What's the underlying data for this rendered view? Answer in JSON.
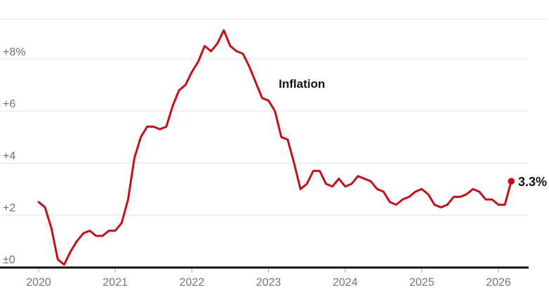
{
  "chart_data": {
    "type": "line",
    "title": "",
    "series_label": "Inflation",
    "unit": "%",
    "frequency": "monthly",
    "start_month": "2020-01",
    "values": [
      2.5,
      2.3,
      1.5,
      0.3,
      0.1,
      0.6,
      1.0,
      1.3,
      1.4,
      1.2,
      1.2,
      1.4,
      1.4,
      1.7,
      2.6,
      4.2,
      5.0,
      5.4,
      5.4,
      5.3,
      5.4,
      6.2,
      6.8,
      7.0,
      7.5,
      7.9,
      8.5,
      8.3,
      8.6,
      9.1,
      8.5,
      8.3,
      8.2,
      7.7,
      7.1,
      6.5,
      6.4,
      6.0,
      5.0,
      4.9,
      4.0,
      3.0,
      3.2,
      3.7,
      3.7,
      3.2,
      3.1,
      3.4,
      3.1,
      3.2,
      3.5,
      3.4,
      3.3,
      3.0,
      2.9,
      2.5,
      2.4,
      2.6,
      2.7,
      2.9,
      3.0,
      2.8,
      2.4,
      2.3,
      2.4,
      2.7,
      2.7,
      2.8,
      3.0,
      2.9,
      2.6,
      2.6,
      2.4,
      2.4,
      3.3
    ],
    "latest_value": 3.3,
    "end_label": "3.3%",
    "y_tick_labels": [
      "±0",
      "+2",
      "+4",
      "+6",
      "+8%"
    ],
    "y_tick_values": [
      0,
      2,
      4,
      6,
      8
    ],
    "x_tick_labels": [
      "2020",
      "2021",
      "2022",
      "2023",
      "2024",
      "2025",
      "2026"
    ],
    "x_tick_values": [
      2020,
      2021,
      2022,
      2023,
      2024,
      2025,
      2026
    ],
    "ylim": [
      0,
      9.55
    ],
    "grid": true,
    "legend_position": "none",
    "line_color": "#c2101a",
    "annotation_color": "#121212",
    "gridline_color": "#e2e2e2",
    "axis_color": "#121212",
    "tick_color": "#a9a9a9"
  }
}
